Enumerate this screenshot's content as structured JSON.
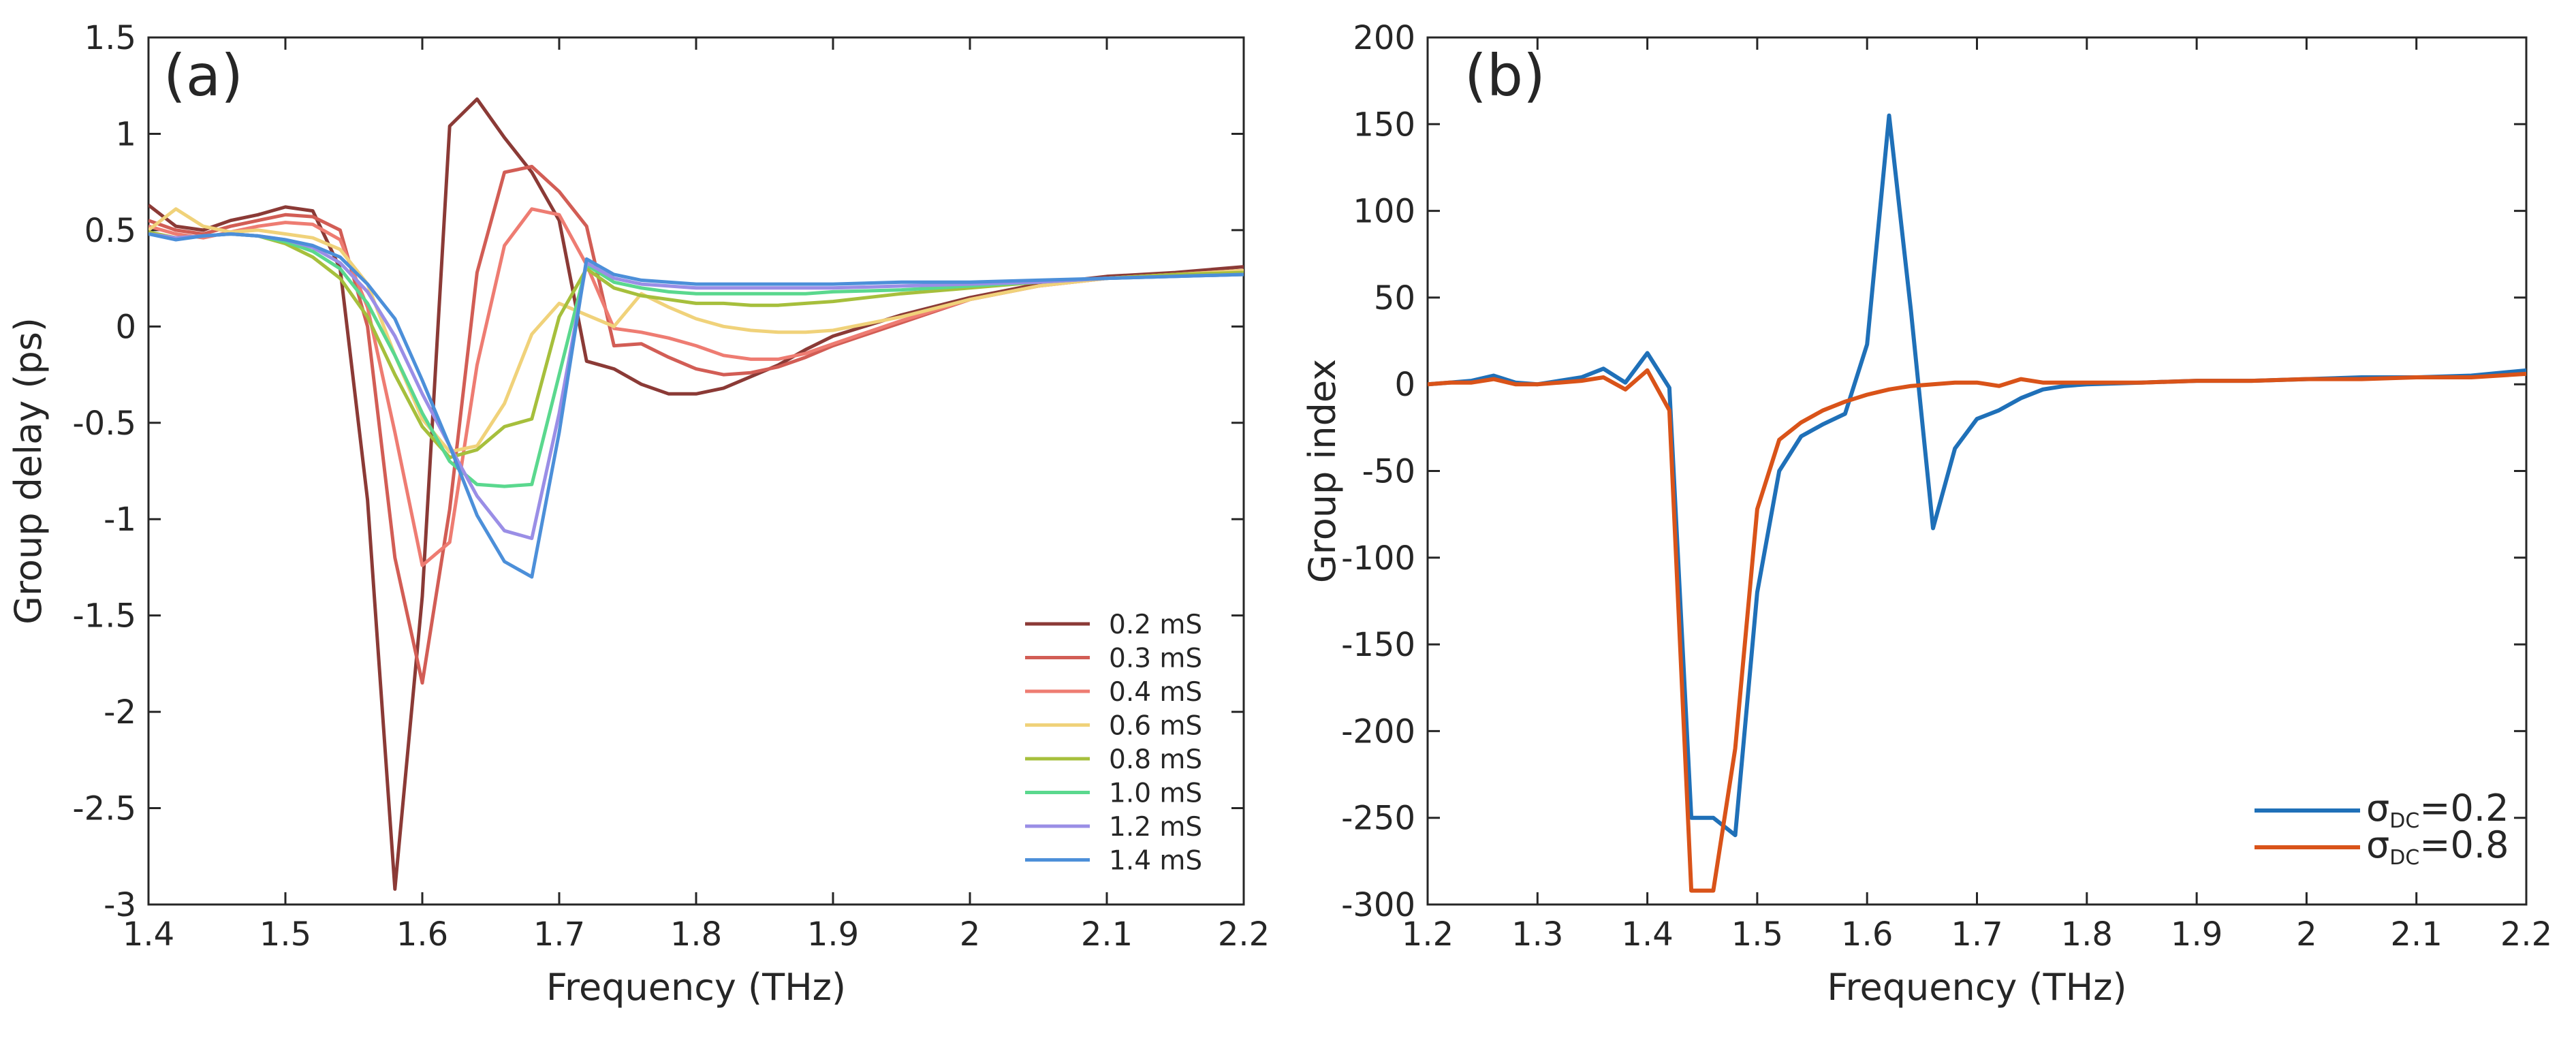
{
  "chart_data": [
    {
      "type": "line",
      "panel_label": "(a)",
      "xlabel": "Frequency (THz)",
      "ylabel": "Group delay (ps)",
      "xlim": [
        1.4,
        2.2
      ],
      "ylim": [
        -3.0,
        1.5
      ],
      "xticks": [
        1.4,
        1.5,
        1.6,
        1.7,
        1.8,
        1.9,
        2.0,
        2.1,
        2.2
      ],
      "xtick_labels": [
        "1.4",
        "1.5",
        "1.6",
        "1.7",
        "1.8",
        "1.9",
        "2",
        "2.1",
        "2.2"
      ],
      "yticks": [
        1.5,
        1.0,
        0.5,
        0.0,
        -0.5,
        -1.0,
        -1.5,
        -2.0,
        -2.5,
        -3.0
      ],
      "ytick_labels": [
        "1.5",
        "1",
        "0.5",
        "0",
        "-0.5",
        "-1",
        "-1.5",
        "-2",
        "-2.5",
        "-3"
      ],
      "legend_position": "bottom-right",
      "grid": false,
      "series": [
        {
          "name": "0.2 mS",
          "color": "#8B3A36",
          "x": [
            1.4,
            1.42,
            1.44,
            1.46,
            1.48,
            1.5,
            1.52,
            1.54,
            1.56,
            1.58,
            1.6,
            1.62,
            1.64,
            1.66,
            1.68,
            1.7,
            1.72,
            1.74,
            1.76,
            1.78,
            1.8,
            1.82,
            1.84,
            1.86,
            1.88,
            1.9,
            1.95,
            2.0,
            2.05,
            2.1,
            2.15,
            2.2
          ],
          "y": [
            0.63,
            0.52,
            0.5,
            0.55,
            0.58,
            0.62,
            0.6,
            0.3,
            -0.9,
            -2.92,
            -1.4,
            1.04,
            1.18,
            0.98,
            0.8,
            0.55,
            -0.18,
            -0.22,
            -0.3,
            -0.35,
            -0.35,
            -0.32,
            -0.26,
            -0.2,
            -0.12,
            -0.05,
            0.06,
            0.15,
            0.22,
            0.26,
            0.28,
            0.31
          ]
        },
        {
          "name": "0.3 mS",
          "color": "#D25D55",
          "x": [
            1.4,
            1.42,
            1.44,
            1.46,
            1.48,
            1.5,
            1.52,
            1.54,
            1.56,
            1.58,
            1.6,
            1.62,
            1.64,
            1.66,
            1.68,
            1.7,
            1.72,
            1.74,
            1.76,
            1.78,
            1.8,
            1.82,
            1.84,
            1.86,
            1.88,
            1.9,
            1.95,
            2.0,
            2.05,
            2.1,
            2.15,
            2.2
          ],
          "y": [
            0.55,
            0.5,
            0.48,
            0.52,
            0.55,
            0.58,
            0.57,
            0.5,
            0.0,
            -1.2,
            -1.85,
            -0.95,
            0.28,
            0.8,
            0.83,
            0.7,
            0.52,
            -0.1,
            -0.09,
            -0.16,
            -0.22,
            -0.25,
            -0.24,
            -0.21,
            -0.16,
            -0.1,
            0.02,
            0.14,
            0.21,
            0.25,
            0.27,
            0.29
          ]
        },
        {
          "name": "0.4 mS",
          "color": "#EE7C72",
          "x": [
            1.4,
            1.42,
            1.44,
            1.46,
            1.48,
            1.5,
            1.52,
            1.54,
            1.56,
            1.58,
            1.6,
            1.62,
            1.64,
            1.66,
            1.68,
            1.7,
            1.72,
            1.74,
            1.76,
            1.78,
            1.8,
            1.82,
            1.84,
            1.86,
            1.88,
            1.9,
            1.95,
            2.0,
            2.05,
            2.1,
            2.15,
            2.2
          ],
          "y": [
            0.52,
            0.48,
            0.46,
            0.49,
            0.52,
            0.54,
            0.53,
            0.45,
            0.1,
            -0.55,
            -1.24,
            -1.12,
            -0.2,
            0.42,
            0.61,
            0.58,
            0.32,
            -0.01,
            -0.03,
            -0.06,
            -0.1,
            -0.15,
            -0.17,
            -0.17,
            -0.14,
            -0.09,
            0.03,
            0.14,
            0.21,
            0.25,
            0.27,
            0.29
          ]
        },
        {
          "name": "0.6 mS",
          "color": "#F0D27A",
          "x": [
            1.4,
            1.42,
            1.44,
            1.46,
            1.48,
            1.5,
            1.52,
            1.54,
            1.56,
            1.58,
            1.6,
            1.62,
            1.64,
            1.66,
            1.68,
            1.7,
            1.72,
            1.74,
            1.76,
            1.78,
            1.8,
            1.82,
            1.84,
            1.86,
            1.88,
            1.9,
            1.95,
            2.0,
            2.05,
            2.1,
            2.15,
            2.2
          ],
          "y": [
            0.5,
            0.61,
            0.52,
            0.49,
            0.5,
            0.48,
            0.46,
            0.4,
            0.22,
            -0.15,
            -0.48,
            -0.65,
            -0.62,
            -0.4,
            -0.04,
            0.12,
            0.06,
            0.0,
            0.17,
            0.1,
            0.04,
            0.0,
            -0.02,
            -0.03,
            -0.03,
            -0.02,
            0.05,
            0.14,
            0.21,
            0.25,
            0.27,
            0.29
          ]
        },
        {
          "name": "0.8 mS",
          "color": "#A6BF3C",
          "x": [
            1.4,
            1.42,
            1.44,
            1.46,
            1.48,
            1.5,
            1.52,
            1.54,
            1.56,
            1.58,
            1.6,
            1.62,
            1.64,
            1.66,
            1.68,
            1.7,
            1.72,
            1.74,
            1.76,
            1.78,
            1.8,
            1.82,
            1.84,
            1.86,
            1.88,
            1.9,
            1.95,
            2.0,
            2.05,
            2.1,
            2.15,
            2.2
          ],
          "y": [
            0.49,
            0.46,
            0.47,
            0.48,
            0.47,
            0.43,
            0.36,
            0.25,
            0.05,
            -0.25,
            -0.52,
            -0.68,
            -0.64,
            -0.52,
            -0.48,
            0.05,
            0.3,
            0.2,
            0.16,
            0.14,
            0.12,
            0.12,
            0.11,
            0.11,
            0.12,
            0.13,
            0.17,
            0.2,
            0.23,
            0.25,
            0.27,
            0.28
          ]
        },
        {
          "name": "1.0 mS",
          "color": "#5AD88E",
          "x": [
            1.4,
            1.42,
            1.44,
            1.46,
            1.48,
            1.5,
            1.52,
            1.54,
            1.56,
            1.58,
            1.6,
            1.62,
            1.64,
            1.66,
            1.68,
            1.7,
            1.72,
            1.74,
            1.76,
            1.78,
            1.8,
            1.82,
            1.84,
            1.86,
            1.88,
            1.9,
            1.95,
            2.0,
            2.05,
            2.1,
            2.15,
            2.2
          ],
          "y": [
            0.48,
            0.46,
            0.47,
            0.48,
            0.47,
            0.44,
            0.39,
            0.3,
            0.12,
            -0.15,
            -0.45,
            -0.7,
            -0.82,
            -0.83,
            -0.82,
            -0.25,
            0.32,
            0.23,
            0.2,
            0.18,
            0.17,
            0.17,
            0.17,
            0.17,
            0.17,
            0.18,
            0.19,
            0.21,
            0.23,
            0.25,
            0.26,
            0.27
          ]
        },
        {
          "name": "1.2 mS",
          "color": "#9A8EE6",
          "x": [
            1.4,
            1.42,
            1.44,
            1.46,
            1.48,
            1.5,
            1.52,
            1.54,
            1.56,
            1.58,
            1.6,
            1.62,
            1.64,
            1.66,
            1.68,
            1.7,
            1.72,
            1.74,
            1.76,
            1.78,
            1.8,
            1.82,
            1.84,
            1.86,
            1.88,
            1.9,
            1.95,
            2.0,
            2.05,
            2.1,
            2.15,
            2.2
          ],
          "y": [
            0.48,
            0.46,
            0.47,
            0.48,
            0.47,
            0.45,
            0.41,
            0.33,
            0.18,
            -0.05,
            -0.35,
            -0.62,
            -0.88,
            -1.06,
            -1.1,
            -0.45,
            0.33,
            0.25,
            0.22,
            0.21,
            0.2,
            0.2,
            0.2,
            0.2,
            0.2,
            0.2,
            0.21,
            0.22,
            0.23,
            0.25,
            0.26,
            0.27
          ]
        },
        {
          "name": "1.4 mS",
          "color": "#4C8FD9",
          "x": [
            1.4,
            1.42,
            1.44,
            1.46,
            1.48,
            1.5,
            1.52,
            1.54,
            1.56,
            1.58,
            1.6,
            1.62,
            1.64,
            1.66,
            1.68,
            1.7,
            1.72,
            1.74,
            1.76,
            1.78,
            1.8,
            1.82,
            1.84,
            1.86,
            1.88,
            1.9,
            1.95,
            2.0,
            2.05,
            2.1,
            2.15,
            2.2
          ],
          "y": [
            0.48,
            0.45,
            0.47,
            0.48,
            0.47,
            0.45,
            0.42,
            0.36,
            0.22,
            0.04,
            -0.28,
            -0.62,
            -0.98,
            -1.22,
            -1.3,
            -0.55,
            0.35,
            0.27,
            0.24,
            0.23,
            0.22,
            0.22,
            0.22,
            0.22,
            0.22,
            0.22,
            0.23,
            0.23,
            0.24,
            0.25,
            0.26,
            0.27
          ]
        }
      ]
    },
    {
      "type": "line",
      "panel_label": "(b)",
      "xlabel": "Frequency (THz)",
      "ylabel": "Group index",
      "xlim": [
        1.2,
        2.2
      ],
      "ylim": [
        -300,
        200
      ],
      "xticks": [
        1.2,
        1.3,
        1.4,
        1.5,
        1.6,
        1.7,
        1.8,
        1.9,
        2.0,
        2.1,
        2.2
      ],
      "xtick_labels": [
        "1.2",
        "1.3",
        "1.4",
        "1.5",
        "1.6",
        "1.7",
        "1.8",
        "1.9",
        "2",
        "2.1",
        "2.2"
      ],
      "yticks": [
        200,
        150,
        100,
        50,
        0,
        -50,
        -100,
        -150,
        -200,
        -250,
        -300
      ],
      "ytick_labels": [
        "200",
        "150",
        "100",
        "50",
        "0",
        "-50",
        "-100",
        "-150",
        "-200",
        "-250",
        "-300"
      ],
      "legend_position": "bottom-right",
      "grid": false,
      "series": [
        {
          "name": "σDC=0.2",
          "legend_main": "σ",
          "legend_sub": "DC",
          "legend_tail": "=0.2",
          "color": "#1F70B8",
          "x": [
            1.2,
            1.22,
            1.24,
            1.26,
            1.28,
            1.3,
            1.32,
            1.34,
            1.36,
            1.38,
            1.4,
            1.42,
            1.44,
            1.46,
            1.48,
            1.5,
            1.52,
            1.54,
            1.56,
            1.58,
            1.6,
            1.62,
            1.64,
            1.66,
            1.68,
            1.7,
            1.72,
            1.74,
            1.76,
            1.78,
            1.8,
            1.85,
            1.9,
            1.95,
            2.0,
            2.05,
            2.1,
            2.15,
            2.2
          ],
          "y": [
            0,
            1,
            2,
            5,
            1,
            0,
            2,
            4,
            9,
            1,
            18,
            -2,
            -250,
            -250,
            -260,
            -120,
            -50,
            -30,
            -23,
            -17,
            23,
            155,
            42,
            -83,
            -37,
            -20,
            -15,
            -8,
            -3,
            -1,
            0,
            1,
            2,
            2,
            3,
            4,
            4,
            5,
            8
          ]
        },
        {
          "name": "σDC=0.8",
          "legend_main": "σ",
          "legend_sub": "DC",
          "legend_tail": "=0.8",
          "color": "#D95319",
          "x": [
            1.2,
            1.22,
            1.24,
            1.26,
            1.28,
            1.3,
            1.32,
            1.34,
            1.36,
            1.38,
            1.4,
            1.42,
            1.44,
            1.46,
            1.48,
            1.5,
            1.52,
            1.54,
            1.56,
            1.58,
            1.6,
            1.62,
            1.64,
            1.66,
            1.68,
            1.7,
            1.72,
            1.74,
            1.76,
            1.78,
            1.8,
            1.85,
            1.9,
            1.95,
            2.0,
            2.05,
            2.1,
            2.15,
            2.2
          ],
          "y": [
            0,
            1,
            1,
            3,
            0,
            0,
            1,
            2,
            4,
            -3,
            8,
            -15,
            -292,
            -292,
            -210,
            -72,
            -32,
            -22,
            -15,
            -10,
            -6,
            -3,
            -1,
            0,
            1,
            1,
            -1,
            3,
            1,
            1,
            1,
            1,
            2,
            2,
            3,
            3,
            4,
            4,
            6
          ]
        }
      ]
    }
  ]
}
